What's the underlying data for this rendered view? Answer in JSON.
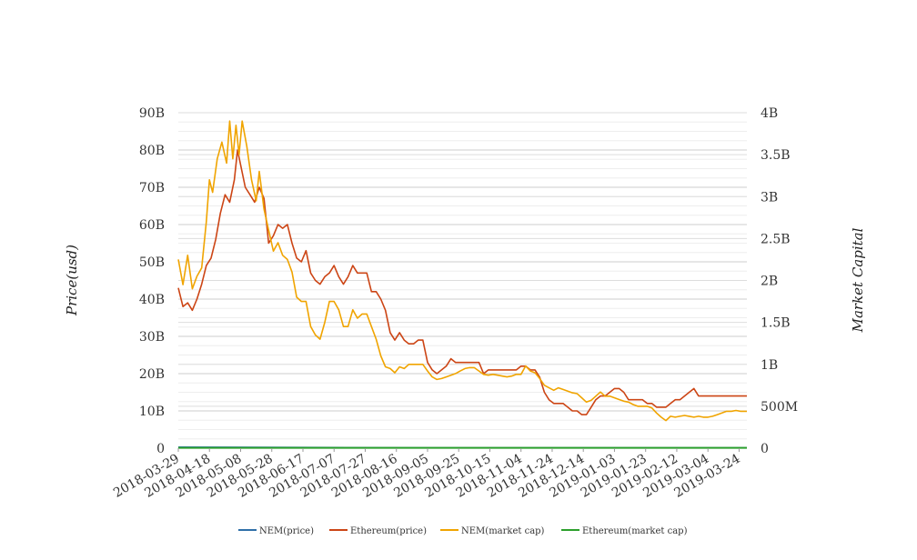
{
  "chart_data": {
    "type": "line",
    "title": "",
    "ylabel_left": "Price(usd)",
    "ylabel_right": "Market Capital",
    "x_ticks": [
      "2018-03-29",
      "2018-04-18",
      "2018-05-08",
      "2018-05-28",
      "2018-06-17",
      "2018-07-07",
      "2018-07-27",
      "2018-08-16",
      "2018-09-05",
      "2018-09-25",
      "2018-10-15",
      "2018-11-04",
      "2018-11-24",
      "2018-12-14",
      "2019-01-03",
      "2019-01-23",
      "2019-02-12",
      "2019-03-04",
      "2019-03-24"
    ],
    "x_range": [
      "2018-03-29",
      "2019-03-29"
    ],
    "y_left_ticks": [
      "0",
      "10B",
      "20B",
      "30B",
      "40B",
      "50B",
      "60B",
      "70B",
      "80B",
      "90B"
    ],
    "y_left_range": [
      0,
      90000000000
    ],
    "y_right_ticks": [
      "0",
      "500M",
      "1B",
      "1.5B",
      "2B",
      "2.5B",
      "3B",
      "3.5B",
      "4B"
    ],
    "y_right_range": [
      0,
      4000000000
    ],
    "grid": true,
    "legend_position": "bottom",
    "series": [
      {
        "name": "NEM(price)",
        "axis": "left",
        "color": "#2f6fa8",
        "points": [
          [
            "2018-03-29",
            0.3
          ],
          [
            "2018-09-05",
            0.1
          ],
          [
            "2019-03-29",
            0.1
          ]
        ]
      },
      {
        "name": "Ethereum(price)",
        "axis": "left",
        "color": "#cc4515",
        "points": [
          [
            "2018-03-29",
            43
          ],
          [
            "2018-04-01",
            38
          ],
          [
            "2018-04-04",
            39
          ],
          [
            "2018-04-07",
            37
          ],
          [
            "2018-04-10",
            40
          ],
          [
            "2018-04-13",
            44
          ],
          [
            "2018-04-16",
            49
          ],
          [
            "2018-04-19",
            51
          ],
          [
            "2018-04-22",
            56
          ],
          [
            "2018-04-25",
            63
          ],
          [
            "2018-04-28",
            68
          ],
          [
            "2018-05-01",
            66
          ],
          [
            "2018-05-04",
            72
          ],
          [
            "2018-05-06",
            80
          ],
          [
            "2018-05-08",
            76
          ],
          [
            "2018-05-11",
            70
          ],
          [
            "2018-05-14",
            68
          ],
          [
            "2018-05-17",
            66
          ],
          [
            "2018-05-20",
            70
          ],
          [
            "2018-05-23",
            67
          ],
          [
            "2018-05-26",
            55
          ],
          [
            "2018-05-29",
            57
          ],
          [
            "2018-06-01",
            60
          ],
          [
            "2018-06-04",
            59
          ],
          [
            "2018-06-07",
            60
          ],
          [
            "2018-06-10",
            55
          ],
          [
            "2018-06-13",
            51
          ],
          [
            "2018-06-16",
            50
          ],
          [
            "2018-06-19",
            53
          ],
          [
            "2018-06-22",
            47
          ],
          [
            "2018-06-25",
            45
          ],
          [
            "2018-06-28",
            44
          ],
          [
            "2018-07-01",
            46
          ],
          [
            "2018-07-04",
            47
          ],
          [
            "2018-07-07",
            49
          ],
          [
            "2018-07-10",
            46
          ],
          [
            "2018-07-13",
            44
          ],
          [
            "2018-07-16",
            46
          ],
          [
            "2018-07-19",
            49
          ],
          [
            "2018-07-22",
            47
          ],
          [
            "2018-07-25",
            47
          ],
          [
            "2018-07-28",
            47
          ],
          [
            "2018-07-31",
            42
          ],
          [
            "2018-08-03",
            42
          ],
          [
            "2018-08-06",
            40
          ],
          [
            "2018-08-09",
            37
          ],
          [
            "2018-08-12",
            31
          ],
          [
            "2018-08-15",
            29
          ],
          [
            "2018-08-18",
            31
          ],
          [
            "2018-08-21",
            29
          ],
          [
            "2018-08-24",
            28
          ],
          [
            "2018-08-27",
            28
          ],
          [
            "2018-08-30",
            29
          ],
          [
            "2018-09-02",
            29
          ],
          [
            "2018-09-05",
            23
          ],
          [
            "2018-09-08",
            21
          ],
          [
            "2018-09-11",
            20
          ],
          [
            "2018-09-14",
            21
          ],
          [
            "2018-09-17",
            22
          ],
          [
            "2018-09-20",
            24
          ],
          [
            "2018-09-23",
            23
          ],
          [
            "2018-09-26",
            23
          ],
          [
            "2018-09-29",
            23
          ],
          [
            "2018-10-02",
            23
          ],
          [
            "2018-10-05",
            23
          ],
          [
            "2018-10-08",
            23
          ],
          [
            "2018-10-11",
            20
          ],
          [
            "2018-10-14",
            21
          ],
          [
            "2018-10-17",
            21
          ],
          [
            "2018-10-20",
            21
          ],
          [
            "2018-10-23",
            21
          ],
          [
            "2018-10-26",
            21
          ],
          [
            "2018-10-29",
            21
          ],
          [
            "2018-11-01",
            21
          ],
          [
            "2018-11-04",
            22
          ],
          [
            "2018-11-07",
            22
          ],
          [
            "2018-11-10",
            21
          ],
          [
            "2018-11-13",
            21
          ],
          [
            "2018-11-16",
            19
          ],
          [
            "2018-11-19",
            15
          ],
          [
            "2018-11-22",
            13
          ],
          [
            "2018-11-25",
            12
          ],
          [
            "2018-11-28",
            12
          ],
          [
            "2018-12-01",
            12
          ],
          [
            "2018-12-04",
            11
          ],
          [
            "2018-12-07",
            10
          ],
          [
            "2018-12-10",
            10
          ],
          [
            "2018-12-13",
            9
          ],
          [
            "2018-12-16",
            9
          ],
          [
            "2018-12-19",
            11
          ],
          [
            "2018-12-22",
            13
          ],
          [
            "2018-12-25",
            14
          ],
          [
            "2018-12-28",
            14
          ],
          [
            "2018-12-31",
            15
          ],
          [
            "2019-01-03",
            16
          ],
          [
            "2019-01-06",
            16
          ],
          [
            "2019-01-09",
            15
          ],
          [
            "2019-01-12",
            13
          ],
          [
            "2019-01-15",
            13
          ],
          [
            "2019-01-18",
            13
          ],
          [
            "2019-01-21",
            13
          ],
          [
            "2019-01-24",
            12
          ],
          [
            "2019-01-27",
            12
          ],
          [
            "2019-01-30",
            11
          ],
          [
            "2019-02-02",
            11
          ],
          [
            "2019-02-05",
            11
          ],
          [
            "2019-02-08",
            12
          ],
          [
            "2019-02-11",
            13
          ],
          [
            "2019-02-14",
            13
          ],
          [
            "2019-02-17",
            14
          ],
          [
            "2019-02-20",
            15
          ],
          [
            "2019-02-23",
            16
          ],
          [
            "2019-02-26",
            14
          ],
          [
            "2019-03-01",
            14
          ],
          [
            "2019-03-04",
            14
          ],
          [
            "2019-03-07",
            14
          ],
          [
            "2019-03-10",
            14
          ],
          [
            "2019-03-13",
            14
          ],
          [
            "2019-03-16",
            14
          ],
          [
            "2019-03-19",
            14
          ],
          [
            "2019-03-22",
            14
          ],
          [
            "2019-03-25",
            14
          ],
          [
            "2019-03-29",
            14
          ]
        ]
      },
      {
        "name": "NEM(market cap)",
        "axis": "right",
        "color": "#f0a400",
        "points": [
          [
            "2018-03-29",
            2.25
          ],
          [
            "2018-04-01",
            1.95
          ],
          [
            "2018-04-04",
            2.3
          ],
          [
            "2018-04-07",
            1.9
          ],
          [
            "2018-04-10",
            2.05
          ],
          [
            "2018-04-13",
            2.15
          ],
          [
            "2018-04-16",
            2.7
          ],
          [
            "2018-04-18",
            3.2
          ],
          [
            "2018-04-20",
            3.05
          ],
          [
            "2018-04-23",
            3.45
          ],
          [
            "2018-04-26",
            3.65
          ],
          [
            "2018-04-29",
            3.4
          ],
          [
            "2018-05-01",
            3.9
          ],
          [
            "2018-05-03",
            3.45
          ],
          [
            "2018-05-05",
            3.85
          ],
          [
            "2018-05-07",
            3.5
          ],
          [
            "2018-05-09",
            3.9
          ],
          [
            "2018-05-12",
            3.6
          ],
          [
            "2018-05-15",
            3.2
          ],
          [
            "2018-05-18",
            2.95
          ],
          [
            "2018-05-20",
            3.3
          ],
          [
            "2018-05-23",
            2.85
          ],
          [
            "2018-05-26",
            2.6
          ],
          [
            "2018-05-29",
            2.35
          ],
          [
            "2018-06-01",
            2.45
          ],
          [
            "2018-06-04",
            2.3
          ],
          [
            "2018-06-07",
            2.25
          ],
          [
            "2018-06-10",
            2.1
          ],
          [
            "2018-06-13",
            1.8
          ],
          [
            "2018-06-16",
            1.75
          ],
          [
            "2018-06-19",
            1.75
          ],
          [
            "2018-06-22",
            1.45
          ],
          [
            "2018-06-25",
            1.35
          ],
          [
            "2018-06-28",
            1.3
          ],
          [
            "2018-07-01",
            1.5
          ],
          [
            "2018-07-04",
            1.75
          ],
          [
            "2018-07-07",
            1.75
          ],
          [
            "2018-07-10",
            1.65
          ],
          [
            "2018-07-13",
            1.45
          ],
          [
            "2018-07-16",
            1.45
          ],
          [
            "2018-07-19",
            1.65
          ],
          [
            "2018-07-22",
            1.55
          ],
          [
            "2018-07-25",
            1.6
          ],
          [
            "2018-07-28",
            1.6
          ],
          [
            "2018-07-31",
            1.45
          ],
          [
            "2018-08-03",
            1.3
          ],
          [
            "2018-08-06",
            1.1
          ],
          [
            "2018-08-09",
            0.97
          ],
          [
            "2018-08-12",
            0.95
          ],
          [
            "2018-08-15",
            0.9
          ],
          [
            "2018-08-18",
            0.97
          ],
          [
            "2018-08-21",
            0.95
          ],
          [
            "2018-08-24",
            1.0
          ],
          [
            "2018-08-27",
            1.0
          ],
          [
            "2018-08-30",
            1.0
          ],
          [
            "2018-09-02",
            1.0
          ],
          [
            "2018-09-05",
            0.92
          ],
          [
            "2018-09-08",
            0.85
          ],
          [
            "2018-09-11",
            0.82
          ],
          [
            "2018-09-14",
            0.83
          ],
          [
            "2018-09-17",
            0.85
          ],
          [
            "2018-09-20",
            0.87
          ],
          [
            "2018-09-23",
            0.89
          ],
          [
            "2018-09-26",
            0.92
          ],
          [
            "2018-09-29",
            0.95
          ],
          [
            "2018-10-02",
            0.96
          ],
          [
            "2018-10-05",
            0.96
          ],
          [
            "2018-10-08",
            0.92
          ],
          [
            "2018-10-11",
            0.88
          ],
          [
            "2018-10-14",
            0.87
          ],
          [
            "2018-10-17",
            0.88
          ],
          [
            "2018-10-20",
            0.87
          ],
          [
            "2018-10-23",
            0.86
          ],
          [
            "2018-10-26",
            0.85
          ],
          [
            "2018-10-29",
            0.86
          ],
          [
            "2018-11-01",
            0.88
          ],
          [
            "2018-11-04",
            0.88
          ],
          [
            "2018-11-07",
            0.98
          ],
          [
            "2018-11-10",
            0.92
          ],
          [
            "2018-11-13",
            0.9
          ],
          [
            "2018-11-16",
            0.83
          ],
          [
            "2018-11-19",
            0.75
          ],
          [
            "2018-11-22",
            0.72
          ],
          [
            "2018-11-25",
            0.69
          ],
          [
            "2018-11-28",
            0.72
          ],
          [
            "2018-12-01",
            0.7
          ],
          [
            "2018-12-04",
            0.68
          ],
          [
            "2018-12-07",
            0.66
          ],
          [
            "2018-12-10",
            0.65
          ],
          [
            "2018-12-13",
            0.6
          ],
          [
            "2018-12-16",
            0.55
          ],
          [
            "2018-12-19",
            0.57
          ],
          [
            "2018-12-22",
            0.62
          ],
          [
            "2018-12-25",
            0.67
          ],
          [
            "2018-12-28",
            0.62
          ],
          [
            "2018-12-31",
            0.62
          ],
          [
            "2019-01-03",
            0.6
          ],
          [
            "2019-01-06",
            0.58
          ],
          [
            "2019-01-09",
            0.56
          ],
          [
            "2019-01-12",
            0.55
          ],
          [
            "2019-01-15",
            0.52
          ],
          [
            "2019-01-18",
            0.5
          ],
          [
            "2019-01-21",
            0.5
          ],
          [
            "2019-01-24",
            0.5
          ],
          [
            "2019-01-27",
            0.48
          ],
          [
            "2019-01-30",
            0.42
          ],
          [
            "2019-02-02",
            0.37
          ],
          [
            "2019-02-05",
            0.33
          ],
          [
            "2019-02-08",
            0.38
          ],
          [
            "2019-02-11",
            0.37
          ],
          [
            "2019-02-14",
            0.38
          ],
          [
            "2019-02-17",
            0.39
          ],
          [
            "2019-02-20",
            0.38
          ],
          [
            "2019-02-23",
            0.37
          ],
          [
            "2019-02-26",
            0.38
          ],
          [
            "2019-03-01",
            0.37
          ],
          [
            "2019-03-04",
            0.37
          ],
          [
            "2019-03-07",
            0.38
          ],
          [
            "2019-03-10",
            0.4
          ],
          [
            "2019-03-13",
            0.42
          ],
          [
            "2019-03-16",
            0.44
          ],
          [
            "2019-03-19",
            0.44
          ],
          [
            "2019-03-22",
            0.45
          ],
          [
            "2019-03-25",
            0.44
          ],
          [
            "2019-03-29",
            0.44
          ]
        ]
      },
      {
        "name": "Ethereum(market cap)",
        "axis": "left",
        "color": "#2ca02c",
        "points": [
          [
            "2018-03-29",
            0.1
          ],
          [
            "2018-09-05",
            0.1
          ],
          [
            "2019-03-29",
            0.1
          ]
        ]
      }
    ]
  }
}
